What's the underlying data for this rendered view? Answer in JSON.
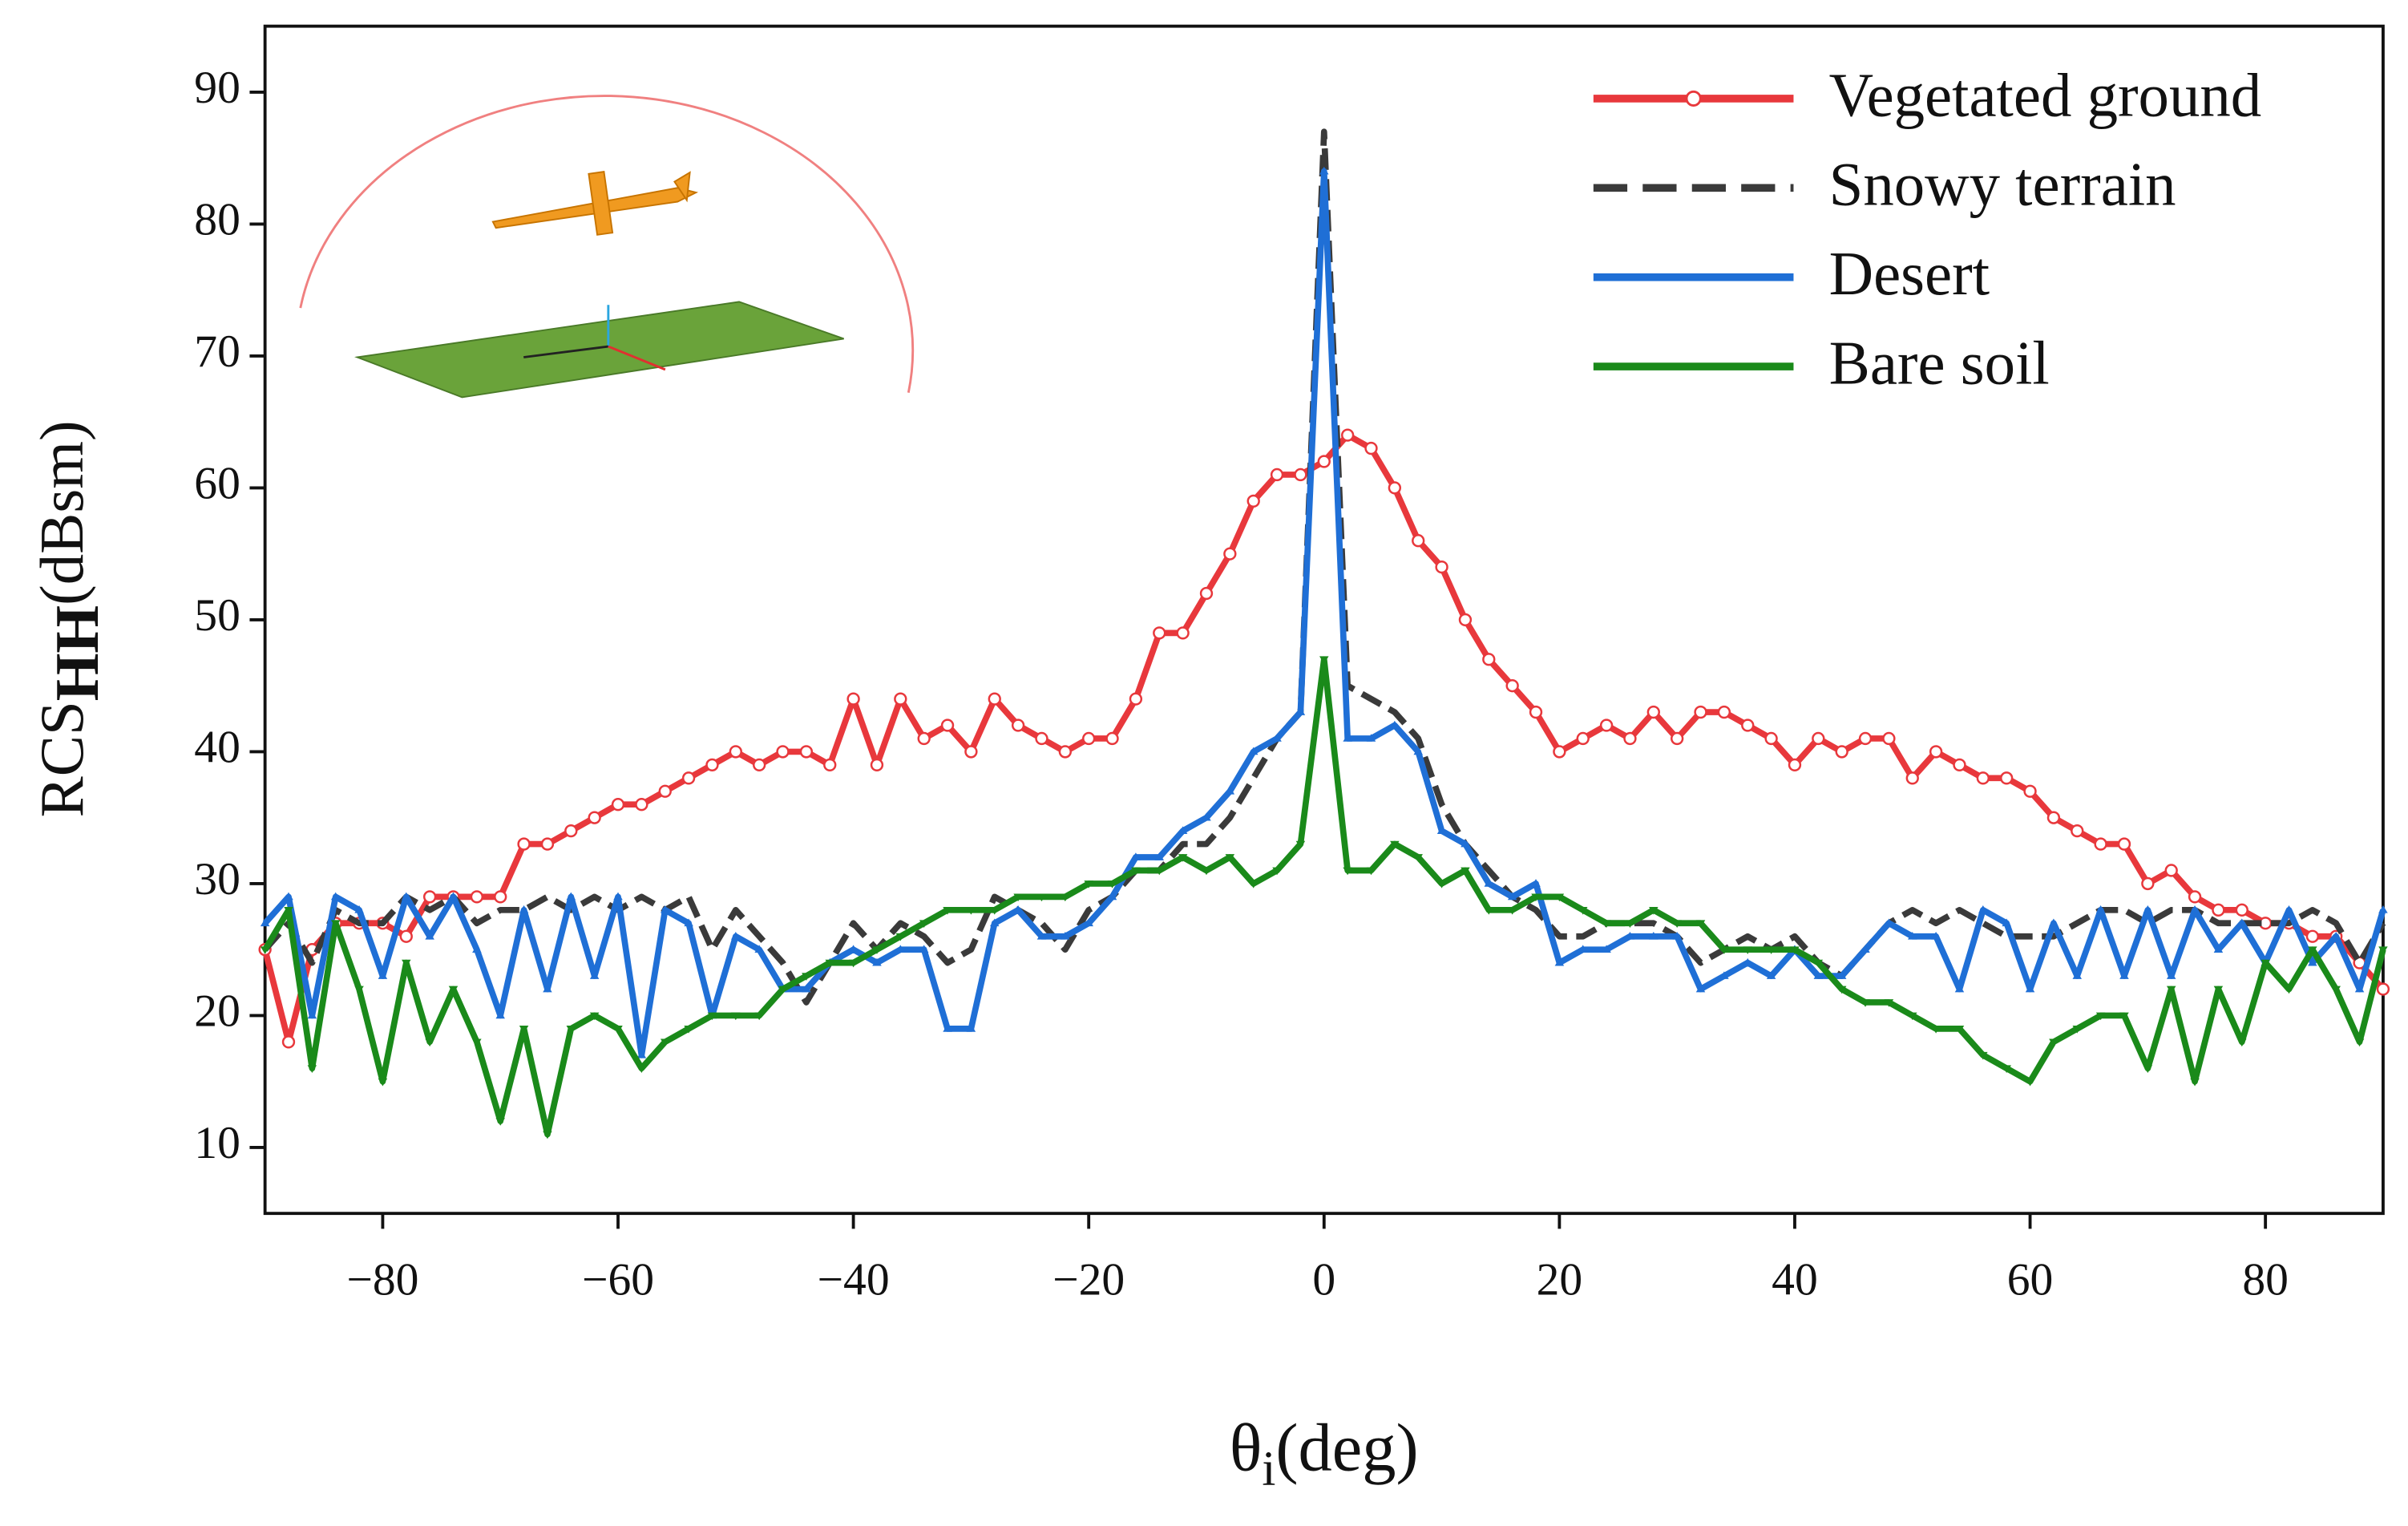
{
  "chart_data": {
    "type": "line",
    "ylabel": "RCS",
    "ylabel_sub": "HH",
    "ylabel_unit": "(dBsm)",
    "xlabel": "θ",
    "xlabel_sub": "i",
    "xlabel_unit": "(deg)",
    "xlim": [
      -90,
      90
    ],
    "ylim": [
      5,
      95
    ],
    "xticks": [
      {
        "value": -80,
        "label": "−80"
      },
      {
        "value": -60,
        "label": "−60"
      },
      {
        "value": -40,
        "label": "−40"
      },
      {
        "value": -20,
        "label": "−20"
      },
      0,
      20,
      40,
      60,
      80
    ],
    "yticks": [
      10,
      20,
      30,
      40,
      50,
      60,
      70,
      80,
      90
    ],
    "legend": "top-right",
    "x": [
      -90,
      -88,
      -86,
      -84,
      -82,
      -80,
      -78,
      -76,
      -74,
      -72,
      -70,
      -68,
      -66,
      -64,
      -62,
      -60,
      -58,
      -56,
      -54,
      -52,
      -50,
      -48,
      -46,
      -44,
      -42,
      -40,
      -38,
      -36,
      -34,
      -32,
      -30,
      -28,
      -26,
      -24,
      -22,
      -20,
      -18,
      -16,
      -14,
      -12,
      -10,
      -8,
      -6,
      -4,
      -2,
      0,
      2,
      4,
      6,
      8,
      10,
      12,
      14,
      16,
      18,
      20,
      22,
      24,
      26,
      28,
      30,
      32,
      34,
      36,
      38,
      40,
      42,
      44,
      46,
      48,
      50,
      52,
      54,
      56,
      58,
      60,
      62,
      64,
      66,
      68,
      70,
      72,
      74,
      76,
      78,
      80,
      82,
      84,
      86,
      88,
      90
    ],
    "series": [
      {
        "name": "Vegetated ground",
        "color": "#e8383c",
        "marker": "circle",
        "dash": "solid",
        "values": [
          25,
          18,
          25,
          27,
          27,
          27,
          26,
          29,
          29,
          29,
          29,
          33,
          33,
          34,
          35,
          36,
          36,
          37,
          38,
          39,
          40,
          39,
          40,
          40,
          39,
          44,
          39,
          44,
          41,
          42,
          40,
          44,
          42,
          41,
          40,
          41,
          41,
          44,
          49,
          49,
          52,
          55,
          59,
          61,
          61,
          62,
          64,
          63,
          60,
          56,
          54,
          50,
          47,
          45,
          43,
          40,
          41,
          42,
          41,
          43,
          41,
          43,
          43,
          42,
          41,
          39,
          41,
          40,
          41,
          41,
          38,
          40,
          39,
          38,
          38,
          37,
          35,
          34,
          33,
          33,
          30,
          31,
          29,
          28,
          28,
          27,
          27,
          26,
          26,
          24,
          22
        ]
      },
      {
        "name": "Snowy terrain",
        "color": "#3a3a3a",
        "marker": "none",
        "dash": "dashed",
        "values": [
          25,
          27,
          24,
          28,
          27,
          27,
          29,
          28,
          29,
          27,
          28,
          28,
          29,
          28,
          29,
          28,
          29,
          28,
          29,
          25,
          28,
          26,
          24,
          21,
          24,
          27,
          25,
          27,
          26,
          24,
          25,
          29,
          28,
          27,
          25,
          28,
          29,
          31,
          31,
          33,
          33,
          35,
          38,
          41,
          43,
          87,
          45,
          44,
          43,
          41,
          36,
          33,
          31,
          29,
          28,
          26,
          26,
          27,
          27,
          27,
          26,
          24,
          25,
          26,
          25,
          26,
          24,
          23,
          25,
          27,
          28,
          27,
          28,
          27,
          26,
          26,
          26,
          27,
          28,
          28,
          27,
          28,
          28,
          27,
          27,
          27,
          27,
          28,
          27,
          24,
          27
        ]
      },
      {
        "name": "Desert",
        "color": "#1f6fd6",
        "marker": "triangle",
        "dash": "solid",
        "values": [
          27,
          29,
          20,
          29,
          28,
          23,
          29,
          26,
          29,
          25,
          20,
          28,
          22,
          29,
          23,
          29,
          17,
          28,
          27,
          20,
          26,
          25,
          22,
          22,
          24,
          25,
          24,
          25,
          25,
          19,
          19,
          27,
          28,
          26,
          26,
          27,
          29,
          32,
          32,
          34,
          35,
          37,
          40,
          41,
          43,
          84,
          41,
          41,
          42,
          40,
          34,
          33,
          30,
          29,
          30,
          24,
          25,
          25,
          26,
          26,
          26,
          22,
          23,
          24,
          23,
          25,
          23,
          23,
          25,
          27,
          26,
          26,
          22,
          28,
          27,
          22,
          27,
          23,
          28,
          23,
          28,
          23,
          28,
          25,
          27,
          24,
          28,
          24,
          26,
          22,
          28
        ]
      },
      {
        "name": "Bare soil",
        "color": "#1a8a1a",
        "marker": "triangle-down",
        "dash": "solid",
        "values": [
          25,
          28,
          16,
          27,
          22,
          15,
          24,
          18,
          22,
          18,
          12,
          19,
          11,
          19,
          20,
          19,
          16,
          18,
          19,
          20,
          20,
          20,
          22,
          23,
          24,
          24,
          25,
          26,
          27,
          28,
          28,
          28,
          29,
          29,
          29,
          30,
          30,
          31,
          31,
          32,
          31,
          32,
          30,
          31,
          33,
          47,
          31,
          31,
          33,
          32,
          30,
          31,
          28,
          28,
          29,
          29,
          28,
          27,
          27,
          28,
          27,
          27,
          25,
          25,
          25,
          25,
          24,
          22,
          21,
          21,
          20,
          19,
          19,
          17,
          16,
          15,
          18,
          19,
          20,
          20,
          16,
          22,
          15,
          22,
          18,
          24,
          22,
          25,
          22,
          18,
          25
        ]
      }
    ]
  }
}
